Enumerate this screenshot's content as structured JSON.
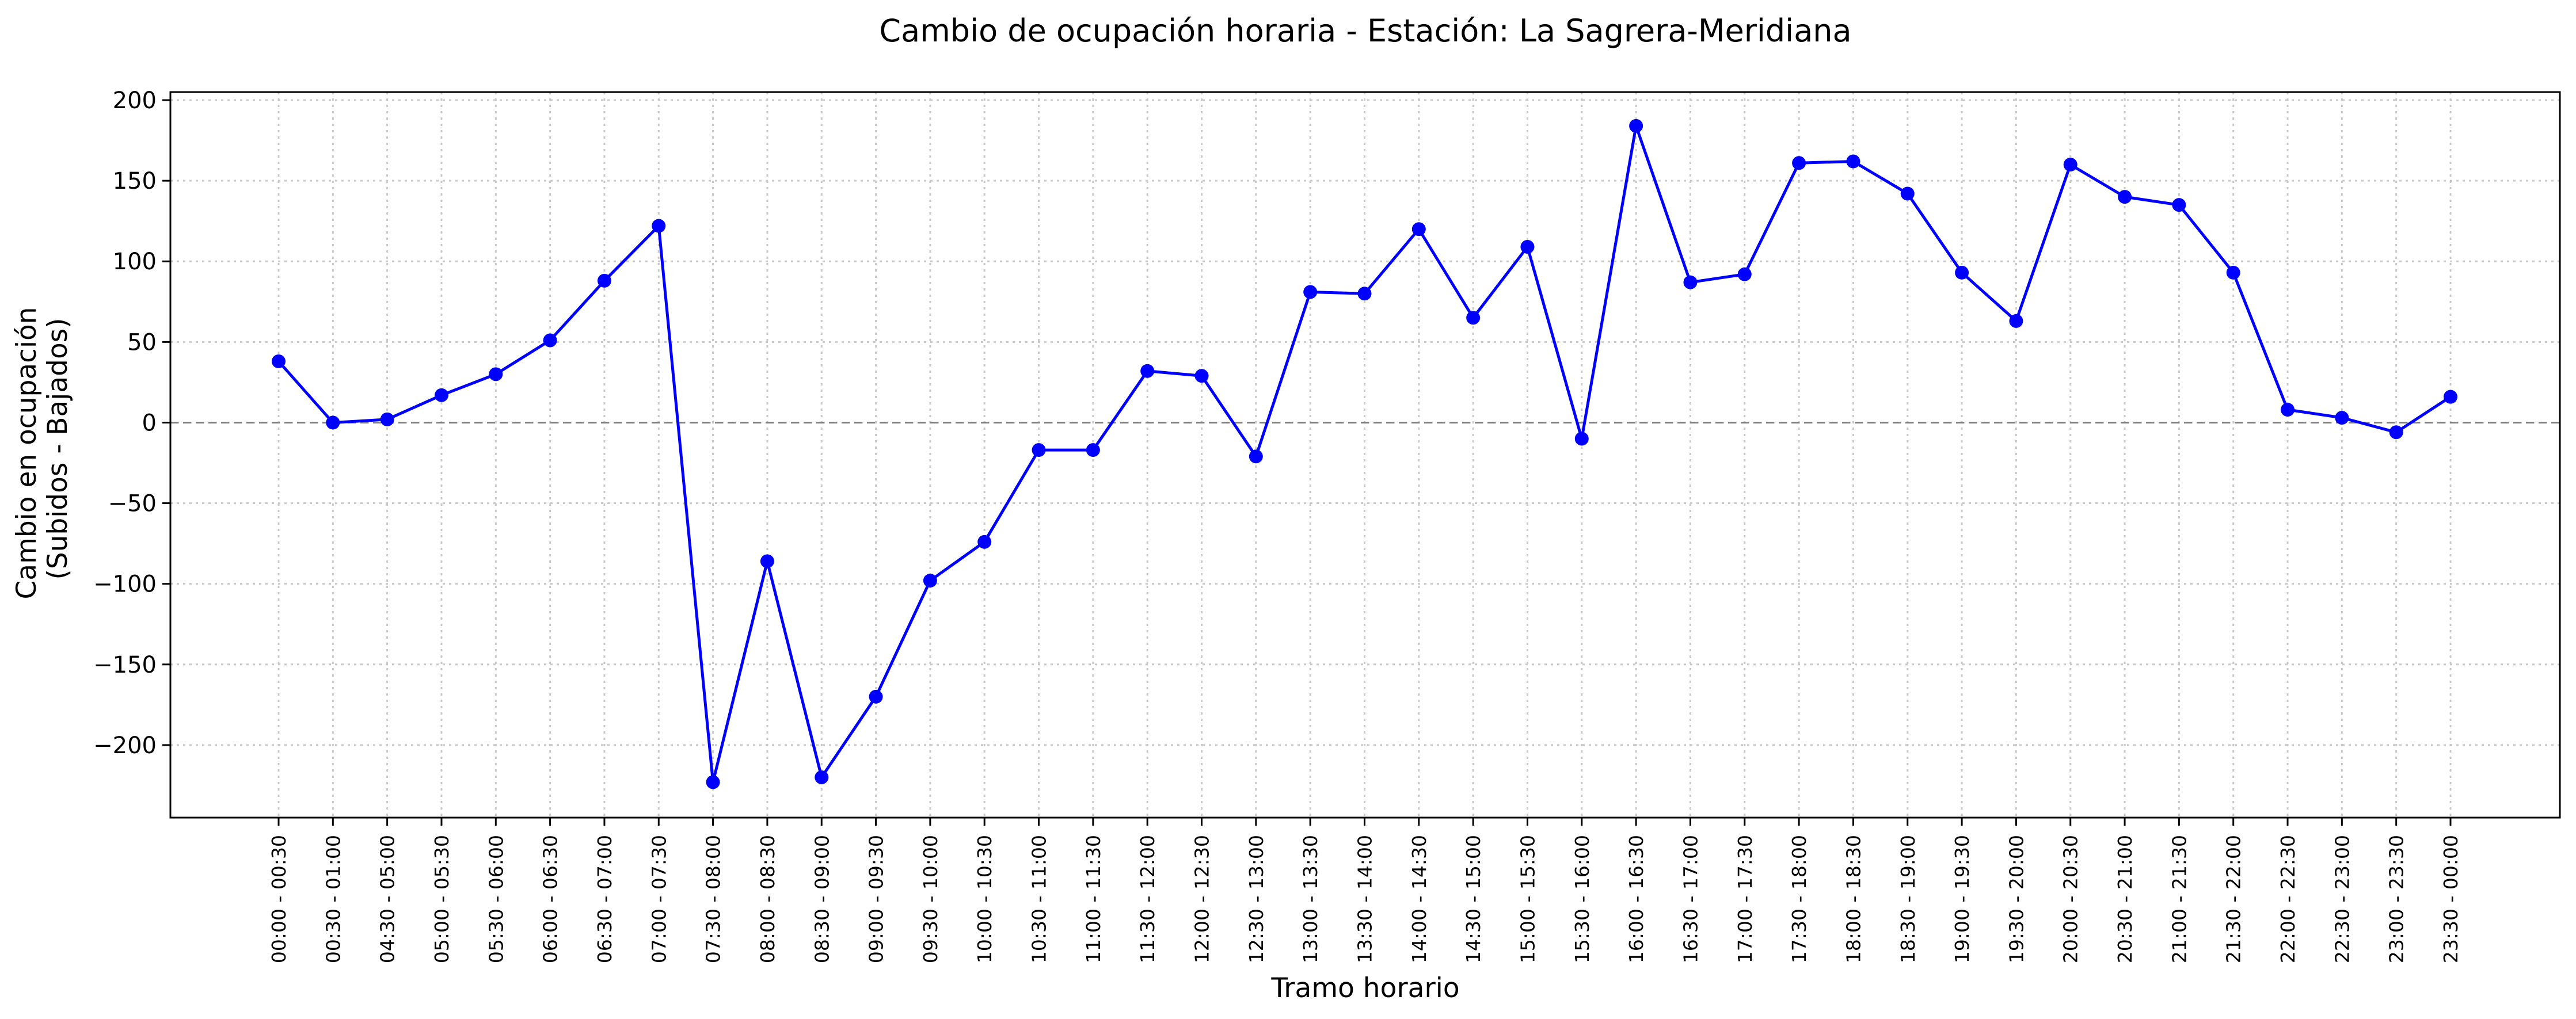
{
  "chart_data": {
    "type": "line",
    "title": "Cambio de ocupación horaria - Estación: La Sagrera-Meridiana",
    "xlabel": "Tramo horario",
    "ylabel": [
      "Cambio en ocupación",
      "(Subidos - Bajados)"
    ],
    "ylim": [
      -245,
      205
    ],
    "yticks": [
      -200,
      -150,
      -100,
      -50,
      0,
      50,
      100,
      150,
      200
    ],
    "ytick_labels": [
      "−200",
      "−150",
      "−100",
      "−50",
      "0",
      "50",
      "100",
      "150",
      "200"
    ],
    "grid": true,
    "zero_line": true,
    "line_color": "#0000ff",
    "categories": [
      "00:00 - 00:30",
      "00:30 - 01:00",
      "04:30 - 05:00",
      "05:00 - 05:30",
      "05:30 - 06:00",
      "06:00 - 06:30",
      "06:30 - 07:00",
      "07:00 - 07:30",
      "07:30 - 08:00",
      "08:00 - 08:30",
      "08:30 - 09:00",
      "09:00 - 09:30",
      "09:30 - 10:00",
      "10:00 - 10:30",
      "10:30 - 11:00",
      "11:00 - 11:30",
      "11:30 - 12:00",
      "12:00 - 12:30",
      "12:30 - 13:00",
      "13:00 - 13:30",
      "13:30 - 14:00",
      "14:00 - 14:30",
      "14:30 - 15:00",
      "15:00 - 15:30",
      "15:30 - 16:00",
      "16:00 - 16:30",
      "16:30 - 17:00",
      "17:00 - 17:30",
      "17:30 - 18:00",
      "18:00 - 18:30",
      "18:30 - 19:00",
      "19:00 - 19:30",
      "19:30 - 20:00",
      "20:00 - 20:30",
      "20:30 - 21:00",
      "21:00 - 21:30",
      "21:30 - 22:00",
      "22:00 - 22:30",
      "22:30 - 23:00",
      "23:00 - 23:30",
      "23:30 - 00:00"
    ],
    "values": [
      38,
      0,
      2,
      17,
      30,
      51,
      88,
      122,
      -223,
      -86,
      -220,
      -170,
      -98,
      -74,
      -17,
      -17,
      32,
      29,
      -21,
      81,
      80,
      120,
      65,
      109,
      -10,
      184,
      87,
      92,
      161,
      162,
      142,
      93,
      63,
      160,
      140,
      135,
      93,
      8,
      3,
      -6,
      16
    ]
  }
}
